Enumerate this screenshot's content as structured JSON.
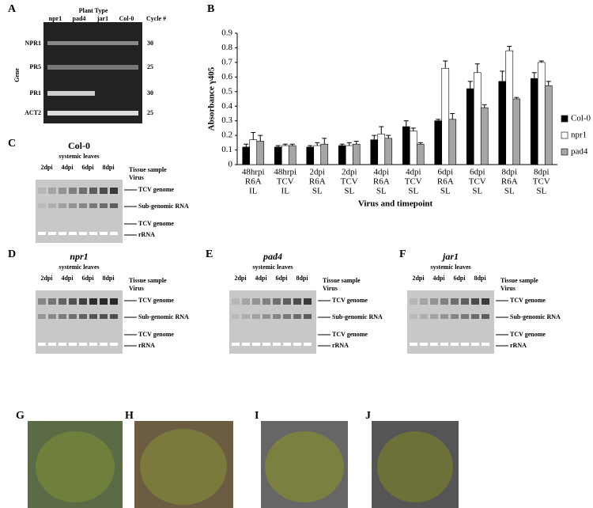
{
  "labels": [
    "A",
    "B",
    "C",
    "D",
    "E",
    "F",
    "G",
    "H",
    "I",
    "J"
  ],
  "panel_a": {
    "title": "Plant Type",
    "lanes": [
      "npr1",
      "pad4",
      "jar1",
      "Col-0"
    ],
    "cycle_header": "Cycle #",
    "axis_label": "Gene",
    "genes": [
      "NPR1",
      "PR5",
      "PR1",
      "ACT2"
    ],
    "cycles": [
      30,
      25,
      30,
      25
    ]
  },
  "blots": [
    {
      "title": "Col-0",
      "subtitle": "systemic leaves",
      "timepoints": [
        "2dpi",
        "4dpi",
        "6dpi",
        "8dpi"
      ],
      "tissue": "Tissue sample",
      "virus": "Virus",
      "band1": "TCV genome",
      "band2": "Sub-genomic RNA",
      "band3": "TCV genome",
      "band4": "rRNA"
    },
    {
      "title": "npr1",
      "subtitle": "systemic leaves",
      "timepoints": [
        "2dpi",
        "4dpi",
        "6dpi",
        "8dpi"
      ],
      "tissue": "Tissue sample",
      "virus": "Virus",
      "band1": "TCV genome",
      "band2": "Sub-genomic RNA",
      "band3": "TCV genome",
      "band4": "rRNA"
    },
    {
      "title": "pad4",
      "subtitle": "systemic leaves",
      "timepoints": [
        "2dpi",
        "4dpi",
        "6dpi",
        "8dpi"
      ],
      "tissue": "Tissue sample",
      "virus": "Virus",
      "band1": "TCV genome",
      "band2": "Sub-genomic RNA",
      "band3": "TCV genome",
      "band4": "rRNA"
    },
    {
      "title": "jar1",
      "subtitle": "systemic leaves",
      "timepoints": [
        "2dpi",
        "4dpi",
        "6dpi",
        "8dpi"
      ],
      "tissue": "Tissue sample",
      "virus": "Virus",
      "band1": "TCV genome",
      "band2": "Sub-genomic RNA",
      "band3": "TCV genome",
      "band4": "rRNA"
    }
  ],
  "chart_data": {
    "type": "bar",
    "y_label": "Absorbance γ405",
    "x_label": "Virus  and timepoint",
    "categories": [
      [
        "48hrpi",
        "R6A",
        "IL"
      ],
      [
        "48hrpi",
        "TCV",
        "IL"
      ],
      [
        "2dpi",
        "R6A",
        "SL"
      ],
      [
        "2dpi",
        "TCV",
        "SL"
      ],
      [
        "4dpi",
        "R6A",
        "SL"
      ],
      [
        "4dpi",
        "TCV",
        "SL"
      ],
      [
        "6dpi",
        "R6A",
        "SL"
      ],
      [
        "6dpi",
        "TCV",
        "SL"
      ],
      [
        "8dpi",
        "R6A",
        "SL"
      ],
      [
        "8dpi",
        "TCV",
        "SL"
      ]
    ],
    "series": [
      {
        "name": "Col-0",
        "color": "#000000",
        "values": [
          0.12,
          0.12,
          0.12,
          0.13,
          0.17,
          0.26,
          0.3,
          0.52,
          0.57,
          0.59
        ],
        "errors": [
          0.02,
          0.01,
          0.01,
          0.01,
          0.03,
          0.04,
          0.01,
          0.05,
          0.07,
          0.04
        ]
      },
      {
        "name": "npr1",
        "color": "#ffffff",
        "values": [
          0.17,
          0.13,
          0.13,
          0.13,
          0.21,
          0.23,
          0.66,
          0.63,
          0.78,
          0.7
        ],
        "errors": [
          0.05,
          0.01,
          0.02,
          0.02,
          0.05,
          0.02,
          0.05,
          0.06,
          0.03,
          0.01
        ]
      },
      {
        "name": "pad4",
        "color": "#a6a6a6",
        "values": [
          0.16,
          0.13,
          0.14,
          0.14,
          0.18,
          0.14,
          0.31,
          0.39,
          0.45,
          0.54
        ],
        "errors": [
          0.04,
          0.01,
          0.04,
          0.02,
          0.02,
          0.01,
          0.04,
          0.02,
          0.01,
          0.03
        ]
      }
    ],
    "ylim": [
      0,
      0.9
    ],
    "yticks": [
      0,
      0.1,
      0.2,
      0.3,
      0.4,
      0.5,
      0.6,
      0.7,
      0.8,
      0.9
    ],
    "grid": false,
    "legend": "right"
  }
}
